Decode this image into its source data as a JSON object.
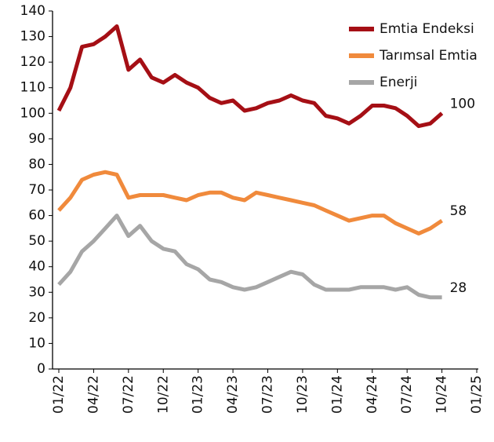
{
  "chart_data": {
    "type": "line",
    "x": [
      "01/22",
      "02/22",
      "03/22",
      "04/22",
      "05/22",
      "06/22",
      "07/22",
      "08/22",
      "09/22",
      "10/22",
      "11/22",
      "12/22",
      "01/23",
      "02/23",
      "03/23",
      "04/23",
      "05/23",
      "06/23",
      "07/23",
      "08/23",
      "09/23",
      "10/23",
      "11/23",
      "12/23",
      "01/24",
      "02/24",
      "03/24",
      "04/24",
      "05/24",
      "06/24",
      "07/24",
      "08/24",
      "09/24",
      "10/24"
    ],
    "series": [
      {
        "name": "Emtia Endeksi",
        "color": "#a50f15",
        "values": [
          101,
          110,
          126,
          127,
          130,
          134,
          117,
          121,
          114,
          112,
          115,
          112,
          110,
          106,
          104,
          105,
          101,
          102,
          104,
          105,
          107,
          105,
          104,
          99,
          98,
          96,
          99,
          103,
          103,
          102,
          99,
          95,
          96,
          100
        ]
      },
      {
        "name": "Tarımsal Emtia",
        "color": "#f08a3c",
        "values": [
          62,
          67,
          74,
          76,
          77,
          76,
          67,
          68,
          68,
          68,
          67,
          66,
          68,
          69,
          69,
          67,
          66,
          69,
          68,
          67,
          66,
          65,
          64,
          62,
          60,
          58,
          59,
          60,
          60,
          57,
          55,
          53,
          55,
          58
        ]
      },
      {
        "name": "Enerji",
        "color": "#a6a6a6",
        "values": [
          33,
          38,
          46,
          50,
          55,
          60,
          52,
          56,
          50,
          47,
          46,
          41,
          39,
          35,
          34,
          32,
          31,
          32,
          34,
          36,
          38,
          37,
          33,
          31,
          31,
          31,
          32,
          32,
          32,
          31,
          32,
          29,
          28,
          28
        ]
      }
    ],
    "xlim": [
      "01/22",
      "01/25"
    ],
    "xticks": [
      "01/22",
      "04/22",
      "07/22",
      "10/22",
      "01/23",
      "04/23",
      "07/23",
      "10/23",
      "01/24",
      "04/24",
      "07/24",
      "10/24",
      "01/25"
    ],
    "ylim": [
      0,
      140
    ],
    "yticks": [
      0,
      10,
      20,
      30,
      40,
      50,
      60,
      70,
      80,
      90,
      100,
      110,
      120,
      130,
      140
    ],
    "grid": false,
    "legend": "upper right"
  }
}
